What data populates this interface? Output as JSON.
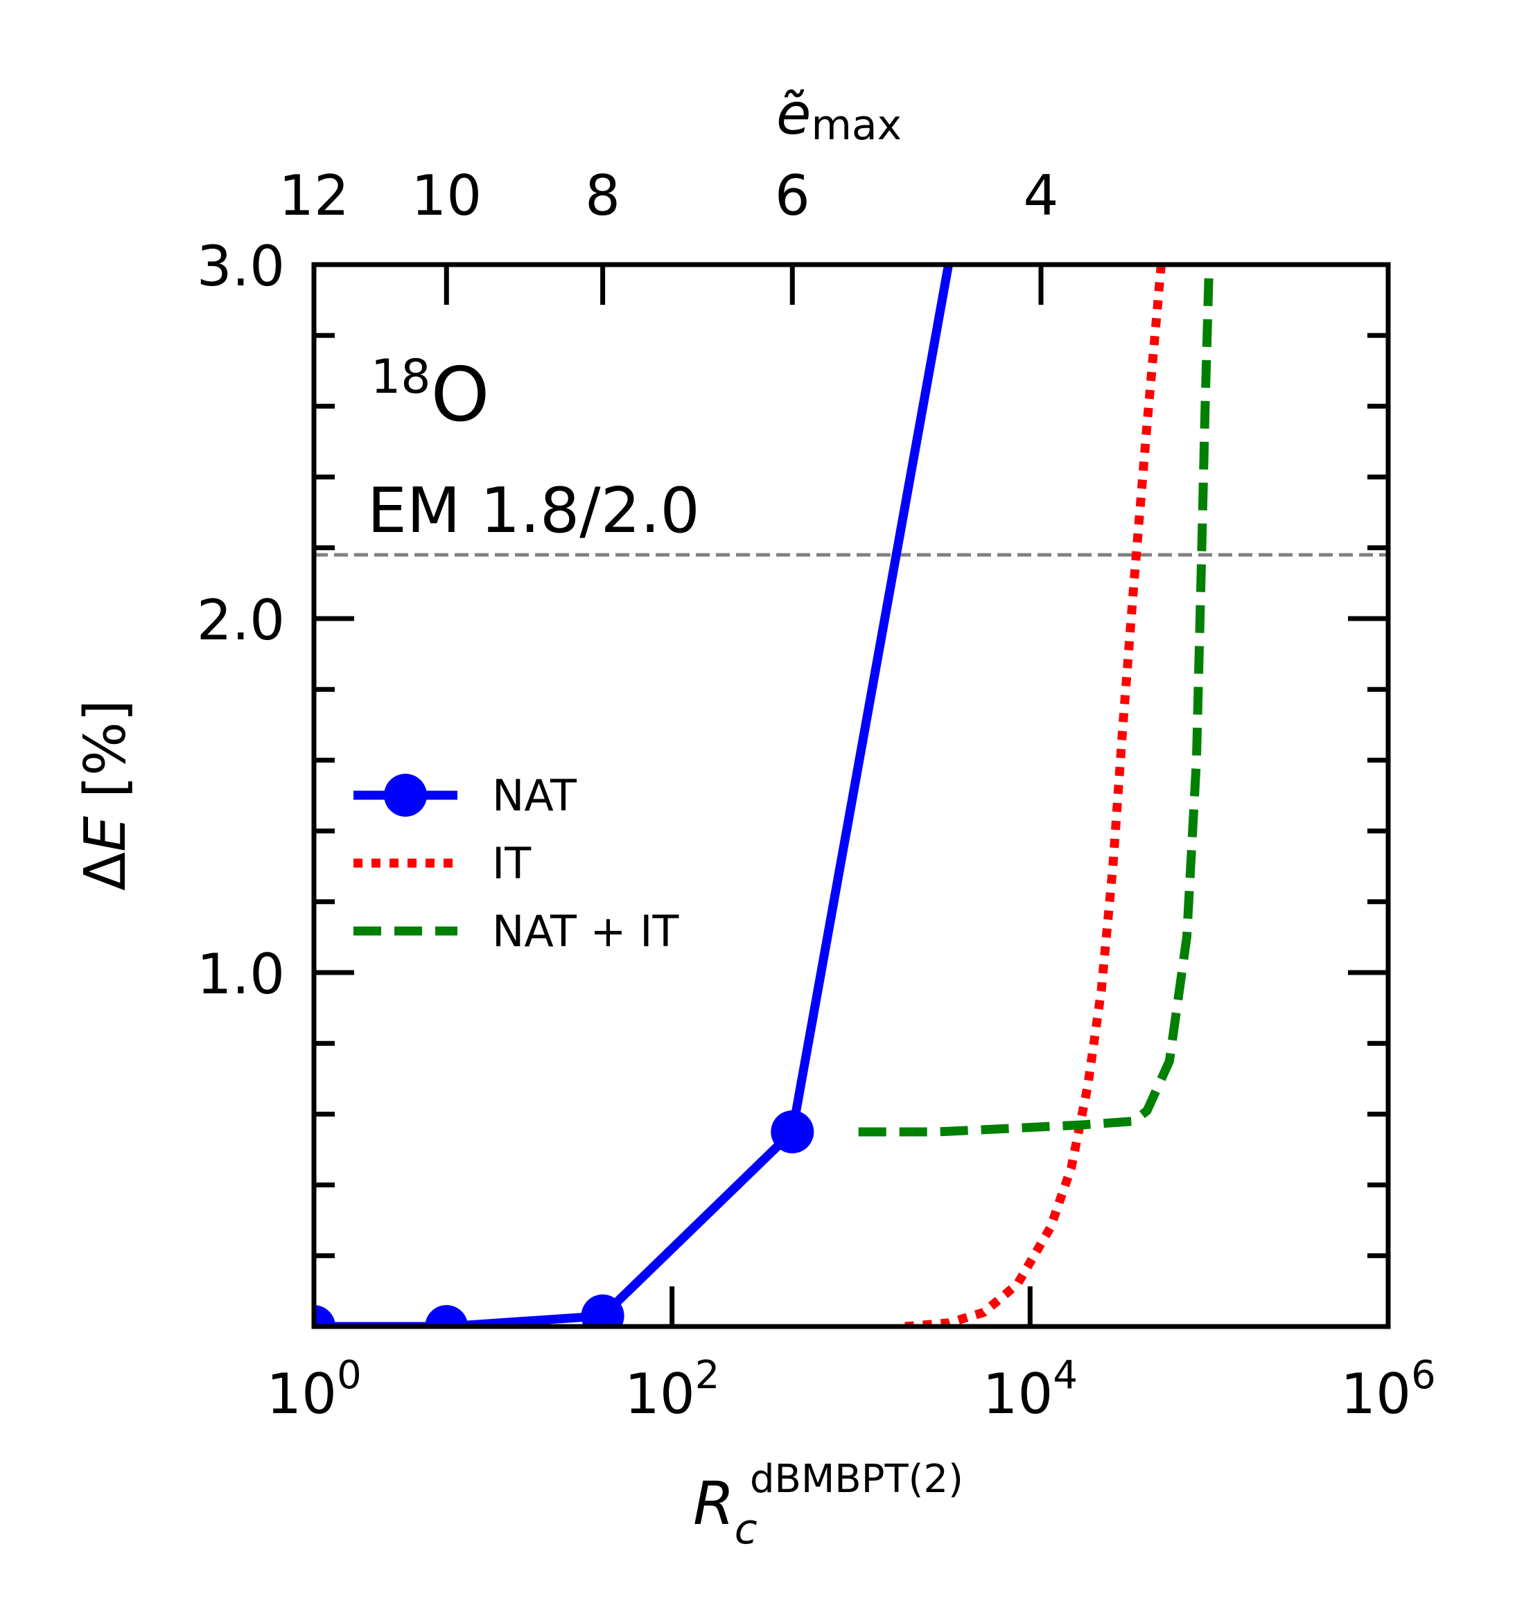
{
  "chart_data": {
    "type": "line",
    "annotations": {
      "nucleus_mass": "18",
      "nucleus_symbol": "O",
      "interaction": "EM 1.8/2.0"
    },
    "xaxis": {
      "label_main": "R",
      "label_sub": "c",
      "label_sup": "dBMBPT(2)",
      "scale": "log",
      "xlim": [
        1,
        1000000
      ],
      "ticks": [
        {
          "value": 1,
          "base": "10",
          "exp": "0"
        },
        {
          "value": 100,
          "base": "10",
          "exp": "2"
        },
        {
          "value": 10000,
          "base": "10",
          "exp": "4"
        },
        {
          "value": 1000000,
          "base": "10",
          "exp": "6"
        }
      ]
    },
    "top_axis": {
      "label_main": "ẽ",
      "label_sub": "max",
      "ticks": [
        {
          "label": "12",
          "rc": 1
        },
        {
          "label": "10",
          "rc": 5.5
        },
        {
          "label": "8",
          "rc": 41
        },
        {
          "label": "6",
          "rc": 470
        },
        {
          "label": "4",
          "rc": 11500
        }
      ]
    },
    "yaxis": {
      "label": "ΔE [%]",
      "ylim": [
        0,
        3.0
      ],
      "ticks": [
        {
          "value": 1.0,
          "label": "1.0"
        },
        {
          "value": 2.0,
          "label": "2.0"
        },
        {
          "value": 3.0,
          "label": "3.0"
        }
      ],
      "minor_step": 0.2
    },
    "reference_line": {
      "y": 2.18,
      "color": "#808080",
      "style": "dashed"
    },
    "legend": {
      "position": "center-left"
    },
    "series": [
      {
        "name": "NAT",
        "color": "#0000ff",
        "style": "solid",
        "markers": true,
        "points": [
          [
            1,
            0.0
          ],
          [
            5.5,
            0.0
          ],
          [
            41,
            0.03
          ],
          [
            470,
            0.55
          ],
          [
            3500,
            3.0
          ]
        ]
      },
      {
        "name": "IT",
        "color": "#ff0000",
        "style": "dotted",
        "markers": false,
        "points": [
          [
            2000,
            0.0
          ],
          [
            3500,
            0.01
          ],
          [
            5500,
            0.04
          ],
          [
            8500,
            0.12
          ],
          [
            13000,
            0.28
          ],
          [
            17000,
            0.45
          ],
          [
            21000,
            0.68
          ],
          [
            25000,
            0.95
          ],
          [
            29000,
            1.3
          ],
          [
            33000,
            1.7
          ],
          [
            38000,
            2.1
          ],
          [
            45000,
            2.55
          ],
          [
            54000,
            3.0
          ]
        ]
      },
      {
        "name": "NAT + IT",
        "color": "#008000",
        "style": "dashed",
        "markers": false,
        "points": [
          [
            1100,
            0.55
          ],
          [
            3000,
            0.55
          ],
          [
            8000,
            0.56
          ],
          [
            20000,
            0.57
          ],
          [
            38000,
            0.58
          ],
          [
            45000,
            0.61
          ],
          [
            60000,
            0.75
          ],
          [
            75000,
            1.1
          ],
          [
            85000,
            1.6
          ],
          [
            90000,
            2.1
          ],
          [
            95000,
            2.6
          ],
          [
            100000,
            3.0
          ]
        ]
      }
    ]
  }
}
